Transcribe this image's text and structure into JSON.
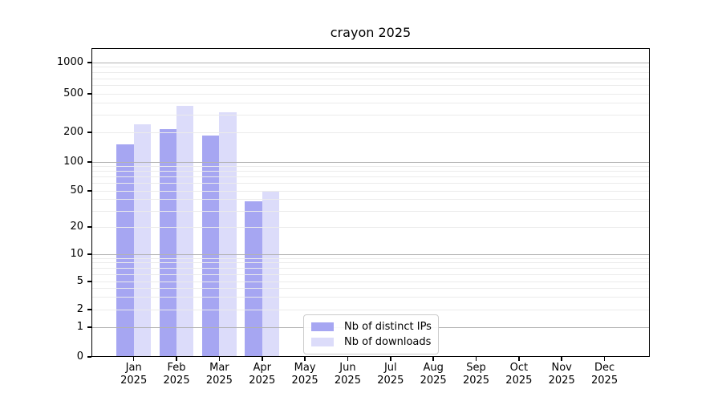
{
  "chart_data": {
    "type": "bar",
    "title": "crayon 2025",
    "x_months": [
      "Jan",
      "Feb",
      "Mar",
      "Apr",
      "May",
      "Jun",
      "Jul",
      "Aug",
      "Sep",
      "Oct",
      "Nov",
      "Dec"
    ],
    "x_year": "2025",
    "series": [
      {
        "name": "Nb of distinct IPs",
        "color": "#a6a6f2",
        "values": [
          150,
          215,
          185,
          38,
          null,
          null,
          null,
          null,
          null,
          null,
          null,
          null
        ]
      },
      {
        "name": "Nb of downloads",
        "color": "#dcdcfa",
        "values": [
          240,
          375,
          320,
          49,
          null,
          null,
          null,
          null,
          null,
          null,
          null,
          null
        ]
      }
    ],
    "y_ticks": [
      0,
      1,
      2,
      5,
      10,
      20,
      50,
      100,
      200,
      500,
      1000
    ],
    "y_scale": "symlog",
    "ylim": [
      0,
      1400
    ],
    "grid": true,
    "legend_position": "inside-bottom-center"
  },
  "colors": {
    "major_grid": "#b2b2b2",
    "minor_grid": "#ebebeb",
    "axis": "#000000",
    "text": "#000000",
    "legend_border": "#cccccc",
    "legend_bg": "#ffffff"
  }
}
